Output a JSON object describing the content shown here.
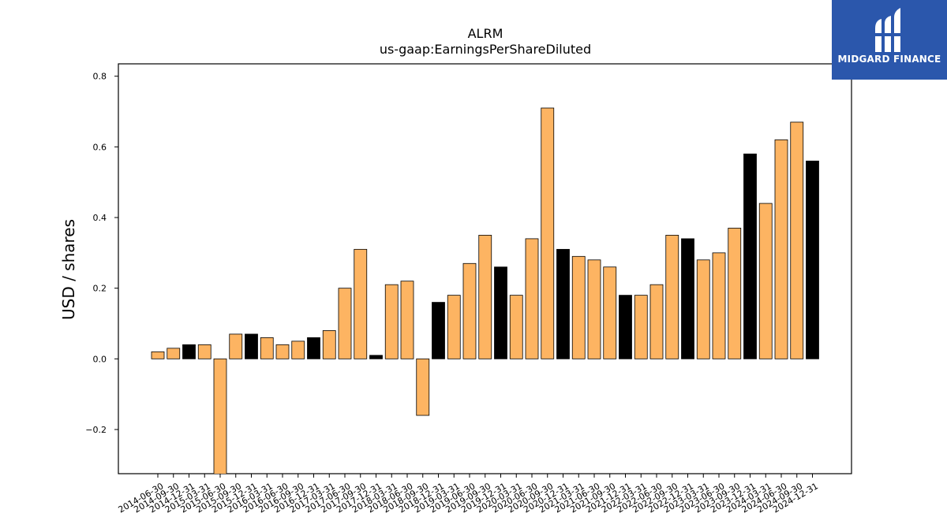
{
  "chart_data": {
    "type": "bar",
    "title": "ALRM",
    "subtitle": "us-gaap:EarningsPerShareDiluted",
    "xlabel": "",
    "ylabel": "USD / shares",
    "ylim": [
      -0.325,
      0.835
    ],
    "yticks": [
      -0.2,
      0.0,
      0.2,
      0.4,
      0.6,
      0.8
    ],
    "ytick_labels": [
      "−0.2",
      "0.0",
      "0.2",
      "0.4",
      "0.6",
      "0.8"
    ],
    "grid": false,
    "colors": {
      "quarter": "#fdb462",
      "annual": "#000000",
      "edge": "#000000"
    },
    "categories": [
      "2014-06-30",
      "2014-09-30",
      "2014-12-31",
      "2015-03-31",
      "2015-06-30",
      "2015-09-30",
      "2015-12-31",
      "2016-03-31",
      "2016-06-30",
      "2016-09-30",
      "2016-12-31",
      "2017-03-31",
      "2017-06-30",
      "2017-09-30",
      "2017-12-31",
      "2018-03-31",
      "2018-06-30",
      "2018-09-30",
      "2018-12-31",
      "2019-03-31",
      "2019-06-30",
      "2019-09-30",
      "2019-12-31",
      "2020-03-31",
      "2020-06-30",
      "2020-09-30",
      "2020-12-31",
      "2021-03-31",
      "2021-06-30",
      "2021-09-30",
      "2021-12-31",
      "2022-03-31",
      "2022-06-30",
      "2022-09-30",
      "2022-12-31",
      "2023-03-31",
      "2023-06-30",
      "2023-09-30",
      "2023-12-31",
      "2024-03-31",
      "2024-06-30",
      "2024-09-30",
      "2024-12-31"
    ],
    "values": [
      0.02,
      0.03,
      0.04,
      0.04,
      -0.33,
      0.07,
      0.07,
      0.06,
      0.04,
      0.05,
      0.06,
      0.08,
      0.2,
      0.31,
      0.01,
      0.21,
      0.22,
      -0.16,
      0.16,
      0.18,
      0.27,
      0.35,
      0.26,
      0.18,
      0.34,
      0.71,
      0.31,
      0.29,
      0.28,
      0.26,
      0.18,
      0.18,
      0.21,
      0.35,
      0.34,
      0.28,
      0.3,
      0.37,
      0.58,
      0.44,
      0.62,
      0.67,
      0.56
    ],
    "is_annual": [
      false,
      false,
      true,
      false,
      false,
      false,
      true,
      false,
      false,
      false,
      true,
      false,
      false,
      false,
      true,
      false,
      false,
      false,
      true,
      false,
      false,
      false,
      true,
      false,
      false,
      false,
      true,
      false,
      false,
      false,
      true,
      false,
      false,
      false,
      true,
      false,
      false,
      false,
      true,
      false,
      false,
      false,
      true
    ]
  },
  "logo": {
    "text": "MIDGARD FINANCE"
  }
}
